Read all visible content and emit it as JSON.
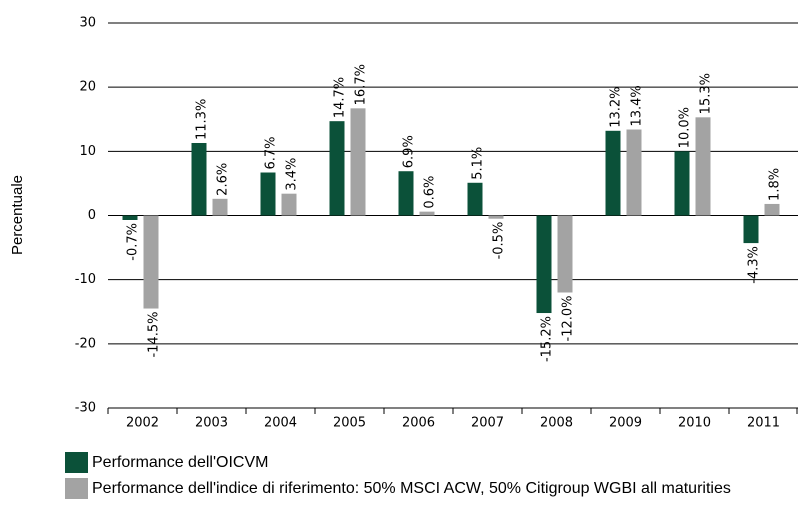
{
  "chart_data": {
    "type": "bar",
    "ylabel": "Percentuale",
    "categories": [
      "2002",
      "2003",
      "2004",
      "2005",
      "2006",
      "2007",
      "2008",
      "2009",
      "2010",
      "2011"
    ],
    "series": [
      {
        "name": "Performance dell'OICVM",
        "color": "#0b5139",
        "values": [
          -0.7,
          11.3,
          6.7,
          14.7,
          6.9,
          5.1,
          -15.2,
          13.2,
          10.0,
          -4.3
        ],
        "value_labels": [
          "-0.7%",
          "11.3%",
          "6.7%",
          "14.7%",
          "6.9%",
          "5.1%",
          "-15.2%",
          "13.2%",
          "10.0%",
          "-4.3%"
        ]
      },
      {
        "name": "Performance dell'indice di riferimento: 50% MSCI ACW, 50% Citigroup WGBI all maturities",
        "color": "#a3a3a3",
        "values": [
          -14.5,
          2.6,
          3.4,
          16.7,
          0.6,
          -0.5,
          -12.0,
          13.4,
          15.3,
          1.8
        ],
        "value_labels": [
          "-14.5%",
          "2.6%",
          "3.4%",
          "16.7%",
          "0.6%",
          "-0.5%",
          "-12.0%",
          "13.4%",
          "15.3%",
          "1.8%"
        ]
      }
    ],
    "ylim": [
      -30,
      30
    ],
    "yticks": [
      -30,
      -20,
      -10,
      0,
      10,
      20,
      30
    ],
    "grid": true
  }
}
